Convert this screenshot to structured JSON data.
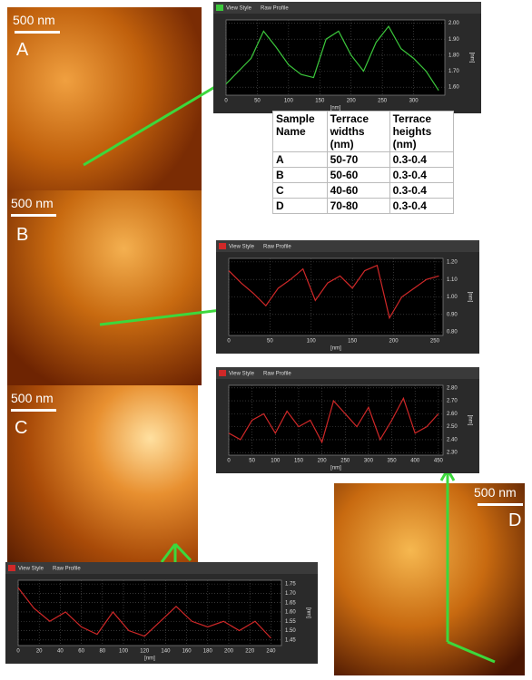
{
  "images": [
    {
      "label": "A",
      "scale": "500 nm"
    },
    {
      "label": "B",
      "scale": "500 nm"
    },
    {
      "label": "C",
      "scale": "500 nm"
    },
    {
      "label": "D",
      "scale": "500 nm"
    }
  ],
  "table": {
    "header": [
      "Sample Name",
      "Terrace widths (nm)",
      "Terrace heights (nm)"
    ],
    "rows": [
      [
        "A",
        "50-70",
        "0.3-0.4"
      ],
      [
        "B",
        "50-60",
        "0.3-0.4"
      ],
      [
        "C",
        "40-60",
        "0.3-0.4"
      ],
      [
        "D",
        "70-80",
        "0.3-0.4"
      ]
    ]
  },
  "chart_data": [
    {
      "type": "line",
      "tabs": [
        "View Style",
        "Raw Profile"
      ],
      "x_label": "[nm]",
      "y_label": "[nm]",
      "x": [
        0,
        20,
        40,
        60,
        80,
        100,
        120,
        140,
        160,
        180,
        200,
        220,
        240,
        260,
        280,
        300,
        320,
        340
      ],
      "series": [
        {
          "color": "#3cc83c",
          "values": [
            1.62,
            1.7,
            1.78,
            1.95,
            1.85,
            1.74,
            1.68,
            1.66,
            1.9,
            1.95,
            1.8,
            1.7,
            1.88,
            1.98,
            1.84,
            1.78,
            1.7,
            1.58
          ]
        }
      ],
      "xlim": [
        0,
        350
      ],
      "ylim": [
        1.55,
        2.02
      ],
      "xticks": [
        0,
        50,
        100,
        150,
        200,
        250,
        300
      ],
      "yticks": [
        {
          "value": 1.6,
          "label": "1.60"
        },
        {
          "value": 1.7,
          "label": "1.70"
        },
        {
          "value": 1.8,
          "label": "1.80"
        },
        {
          "value": 1.9,
          "label": "1.90"
        },
        {
          "value": 2.0,
          "label": "2.00"
        }
      ],
      "grid": true
    },
    {
      "type": "line",
      "tabs": [
        "View Style",
        "Raw Profile"
      ],
      "x_label": "[nm]",
      "y_label": "[nm]",
      "x": [
        0,
        15,
        30,
        45,
        60,
        75,
        90,
        105,
        120,
        135,
        150,
        165,
        180,
        195,
        210,
        225,
        240,
        255
      ],
      "series": [
        {
          "color": "#d02828",
          "values": [
            1.15,
            1.08,
            1.02,
            0.95,
            1.05,
            1.1,
            1.16,
            0.98,
            1.08,
            1.12,
            1.05,
            1.15,
            1.18,
            0.88,
            1.0,
            1.05,
            1.1,
            1.12
          ]
        }
      ],
      "xlim": [
        0,
        260
      ],
      "ylim": [
        0.78,
        1.22
      ],
      "xticks": [
        0,
        50,
        100,
        150,
        200,
        250
      ],
      "yticks": [
        {
          "value": 0.8,
          "label": "0.80"
        },
        {
          "value": 0.9,
          "label": "0.90"
        },
        {
          "value": 1.0,
          "label": "1.00"
        },
        {
          "value": 1.1,
          "label": "1.10"
        },
        {
          "value": 1.2,
          "label": "1.20"
        }
      ],
      "grid": true
    },
    {
      "type": "line",
      "tabs": [
        "View Style",
        "Raw Profile"
      ],
      "x_label": "[nm]",
      "y_label": "[nm]",
      "x": [
        0,
        25,
        50,
        75,
        100,
        125,
        150,
        175,
        200,
        225,
        250,
        275,
        300,
        325,
        350,
        375,
        400,
        425,
        450
      ],
      "series": [
        {
          "color": "#d02828",
          "values": [
            2.45,
            2.4,
            2.55,
            2.6,
            2.45,
            2.62,
            2.5,
            2.55,
            2.38,
            2.7,
            2.6,
            2.5,
            2.65,
            2.4,
            2.55,
            2.72,
            2.45,
            2.5,
            2.6
          ]
        }
      ],
      "xlim": [
        0,
        460
      ],
      "ylim": [
        2.28,
        2.82
      ],
      "xticks": [
        0,
        50,
        100,
        150,
        200,
        250,
        300,
        350,
        400,
        450
      ],
      "yticks": [
        {
          "value": 2.3,
          "label": "2.30"
        },
        {
          "value": 2.4,
          "label": "2.40"
        },
        {
          "value": 2.5,
          "label": "2.50"
        },
        {
          "value": 2.6,
          "label": "2.60"
        },
        {
          "value": 2.7,
          "label": "2.70"
        },
        {
          "value": 2.8,
          "label": "2.80"
        }
      ],
      "grid": true
    },
    {
      "type": "line",
      "tabs": [
        "View Style",
        "Raw Profile"
      ],
      "x_label": "[nm]",
      "y_label": "[nm]",
      "x": [
        0,
        15,
        30,
        45,
        60,
        75,
        90,
        105,
        120,
        135,
        150,
        165,
        180,
        195,
        210,
        225,
        240
      ],
      "series": [
        {
          "color": "#d02828",
          "values": [
            1.73,
            1.62,
            1.55,
            1.6,
            1.52,
            1.48,
            1.6,
            1.5,
            1.47,
            1.55,
            1.63,
            1.55,
            1.52,
            1.55,
            1.5,
            1.55,
            1.46
          ]
        }
      ],
      "xlim": [
        0,
        250
      ],
      "ylim": [
        1.42,
        1.77
      ],
      "xticks": [
        0,
        20,
        40,
        60,
        80,
        100,
        120,
        140,
        160,
        180,
        200,
        220,
        240
      ],
      "yticks": [
        {
          "value": 1.45,
          "label": "1.45"
        },
        {
          "value": 1.5,
          "label": "1.50"
        },
        {
          "value": 1.55,
          "label": "1.55"
        },
        {
          "value": 1.6,
          "label": "1.60"
        },
        {
          "value": 1.65,
          "label": "1.65"
        },
        {
          "value": 1.7,
          "label": "1.70"
        },
        {
          "value": 1.75,
          "label": "1.75"
        }
      ],
      "grid": true
    }
  ]
}
